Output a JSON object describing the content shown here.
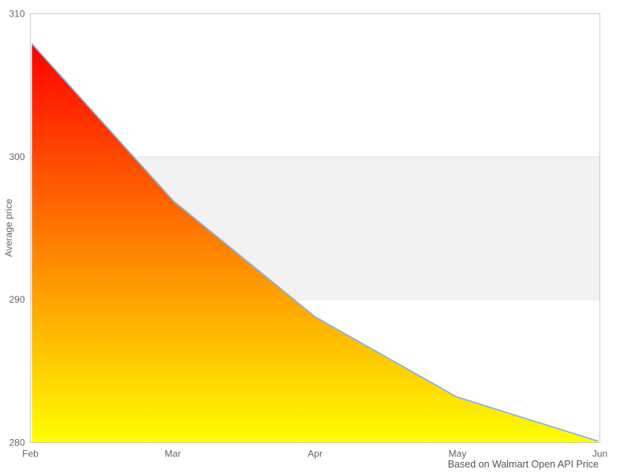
{
  "chart_data": {
    "type": "area",
    "x": [
      "Feb",
      "Mar",
      "Apr",
      "May",
      "Jun"
    ],
    "series": [
      {
        "name": "Average price",
        "values": [
          307.9,
          296.9,
          288.8,
          283.2,
          280.1
        ]
      }
    ],
    "title": "",
    "xlabel": "",
    "ylabel": "Average price",
    "ylim": [
      280,
      310
    ],
    "yticks": [
      280,
      290,
      300,
      310
    ],
    "grid": "horizontal",
    "alternate_band": {
      "from": 290,
      "to": 300
    },
    "legend": "none",
    "caption": "Based on Walmart Open API Price",
    "colors": {
      "fill_top": "#ff0000",
      "fill_bottom": "#ffff00",
      "line": "#8db4d9",
      "plot_border": "#cccccc",
      "grid_line": "#e6e6e6",
      "band_fill": "#f2f2f2",
      "label": "#666666",
      "caption": "#555555",
      "background": "#ffffff"
    }
  }
}
